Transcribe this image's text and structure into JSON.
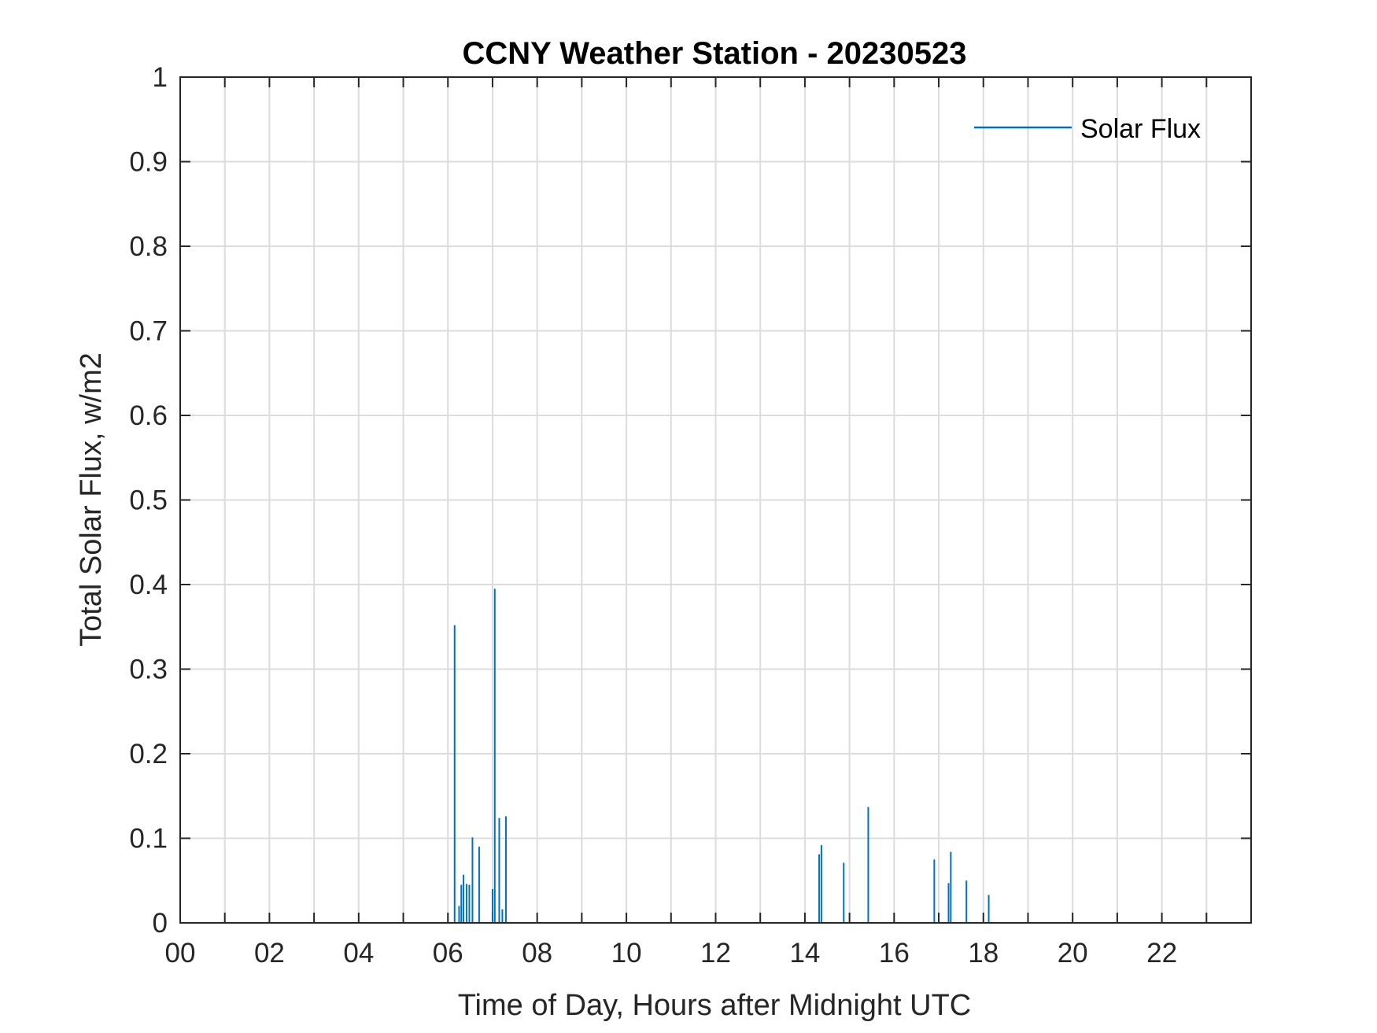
{
  "chart_data": {
    "type": "line",
    "title": "CCNY Weather Station - 20230523",
    "xlabel": "Time of Day, Hours after Midnight UTC",
    "ylabel": "Total Solar Flux, w/m2",
    "xlim": [
      0,
      24
    ],
    "ylim": [
      0,
      1
    ],
    "x_ticks": [
      0,
      2,
      4,
      6,
      8,
      10,
      12,
      14,
      16,
      18,
      20,
      22
    ],
    "x_tick_labels": [
      "00",
      "02",
      "04",
      "06",
      "08",
      "10",
      "12",
      "14",
      "16",
      "18",
      "20",
      "22"
    ],
    "y_ticks": [
      0,
      0.1,
      0.2,
      0.3,
      0.4,
      0.5,
      0.6,
      0.7,
      0.8,
      0.9,
      1
    ],
    "y_tick_labels": [
      "0",
      "0.1",
      "0.2",
      "0.3",
      "0.4",
      "0.5",
      "0.6",
      "0.7",
      "0.8",
      "0.9",
      "1"
    ],
    "grid": true,
    "legend_position": "top-right",
    "series": [
      {
        "name": "Solar Flux",
        "color": "#0072BD",
        "spikes": [
          [
            6.15,
            0.352
          ],
          [
            6.25,
            0.02
          ],
          [
            6.3,
            0.045
          ],
          [
            6.35,
            0.057
          ],
          [
            6.42,
            0.046
          ],
          [
            6.48,
            0.045
          ],
          [
            6.55,
            0.101
          ],
          [
            6.7,
            0.09
          ],
          [
            7.0,
            0.04
          ],
          [
            7.05,
            0.395
          ],
          [
            7.15,
            0.124
          ],
          [
            7.22,
            0.016
          ],
          [
            7.3,
            0.126
          ],
          [
            14.32,
            0.081
          ],
          [
            14.37,
            0.092
          ],
          [
            14.87,
            0.071
          ],
          [
            15.42,
            0.137
          ],
          [
            16.9,
            0.075
          ],
          [
            17.22,
            0.047
          ],
          [
            17.27,
            0.084
          ],
          [
            17.62,
            0.05
          ],
          [
            18.12,
            0.033
          ]
        ]
      }
    ]
  }
}
